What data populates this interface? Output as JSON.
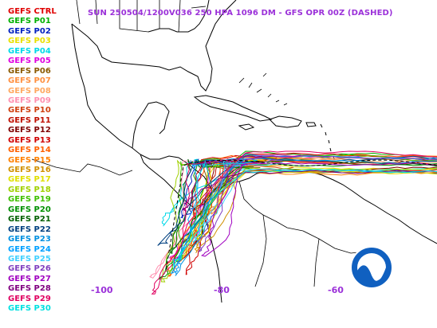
{
  "title": "SUN 250504/1200V036  250 HPA 1096 DM - GFS OPR 00Z (DASHED)",
  "legend": [
    {
      "label": "GEFS CTRL",
      "color": "#e00000"
    },
    {
      "label": "GEFS P01",
      "color": "#00b000"
    },
    {
      "label": "GEFS P02",
      "color": "#0020c0"
    },
    {
      "label": "GEFS P03",
      "color": "#e8e000"
    },
    {
      "label": "GEFS P04",
      "color": "#00d8e8"
    },
    {
      "label": "GEFS P05",
      "color": "#e000e0"
    },
    {
      "label": "GEFS P06",
      "color": "#8a5a00"
    },
    {
      "label": "GEFS P07",
      "color": "#ff9040"
    },
    {
      "label": "GEFS P08",
      "color": "#ffa860"
    },
    {
      "label": "GEFS P09",
      "color": "#ff90b0"
    },
    {
      "label": "GEFS P10",
      "color": "#d04010"
    },
    {
      "label": "GEFS P11",
      "color": "#c01000"
    },
    {
      "label": "GEFS P12",
      "color": "#800000"
    },
    {
      "label": "GEFS P13",
      "color": "#d00000"
    },
    {
      "label": "GEFS P14",
      "color": "#ff6000"
    },
    {
      "label": "GEFS P15",
      "color": "#ff8000"
    },
    {
      "label": "GEFS P16",
      "color": "#d09000"
    },
    {
      "label": "GEFS P17",
      "color": "#e0e000"
    },
    {
      "label": "GEFS P18",
      "color": "#a0d000"
    },
    {
      "label": "GEFS P19",
      "color": "#40c000"
    },
    {
      "label": "GEFS P20",
      "color": "#009000"
    },
    {
      "label": "GEFS P21",
      "color": "#006000"
    },
    {
      "label": "GEFS P22",
      "color": "#004080"
    },
    {
      "label": "GEFS P23",
      "color": "#0090e0"
    },
    {
      "label": "GEFS P24",
      "color": "#00a0ff"
    },
    {
      "label": "GEFS P25",
      "color": "#40d0ff"
    },
    {
      "label": "GEFS P26",
      "color": "#8040c0"
    },
    {
      "label": "GEFS P27",
      "color": "#a000c0"
    },
    {
      "label": "GEFS P28",
      "color": "#800080"
    },
    {
      "label": "GEFS P29",
      "color": "#e00060"
    },
    {
      "label": "GEFS P30",
      "color": "#00e0e0"
    }
  ],
  "longitude_labels": [
    "-100",
    "-80",
    "-60"
  ],
  "title_color": "#9b30d9",
  "logo": {
    "text": "NOAA",
    "color": "#1060c0",
    "icon": "noaa-logo"
  }
}
